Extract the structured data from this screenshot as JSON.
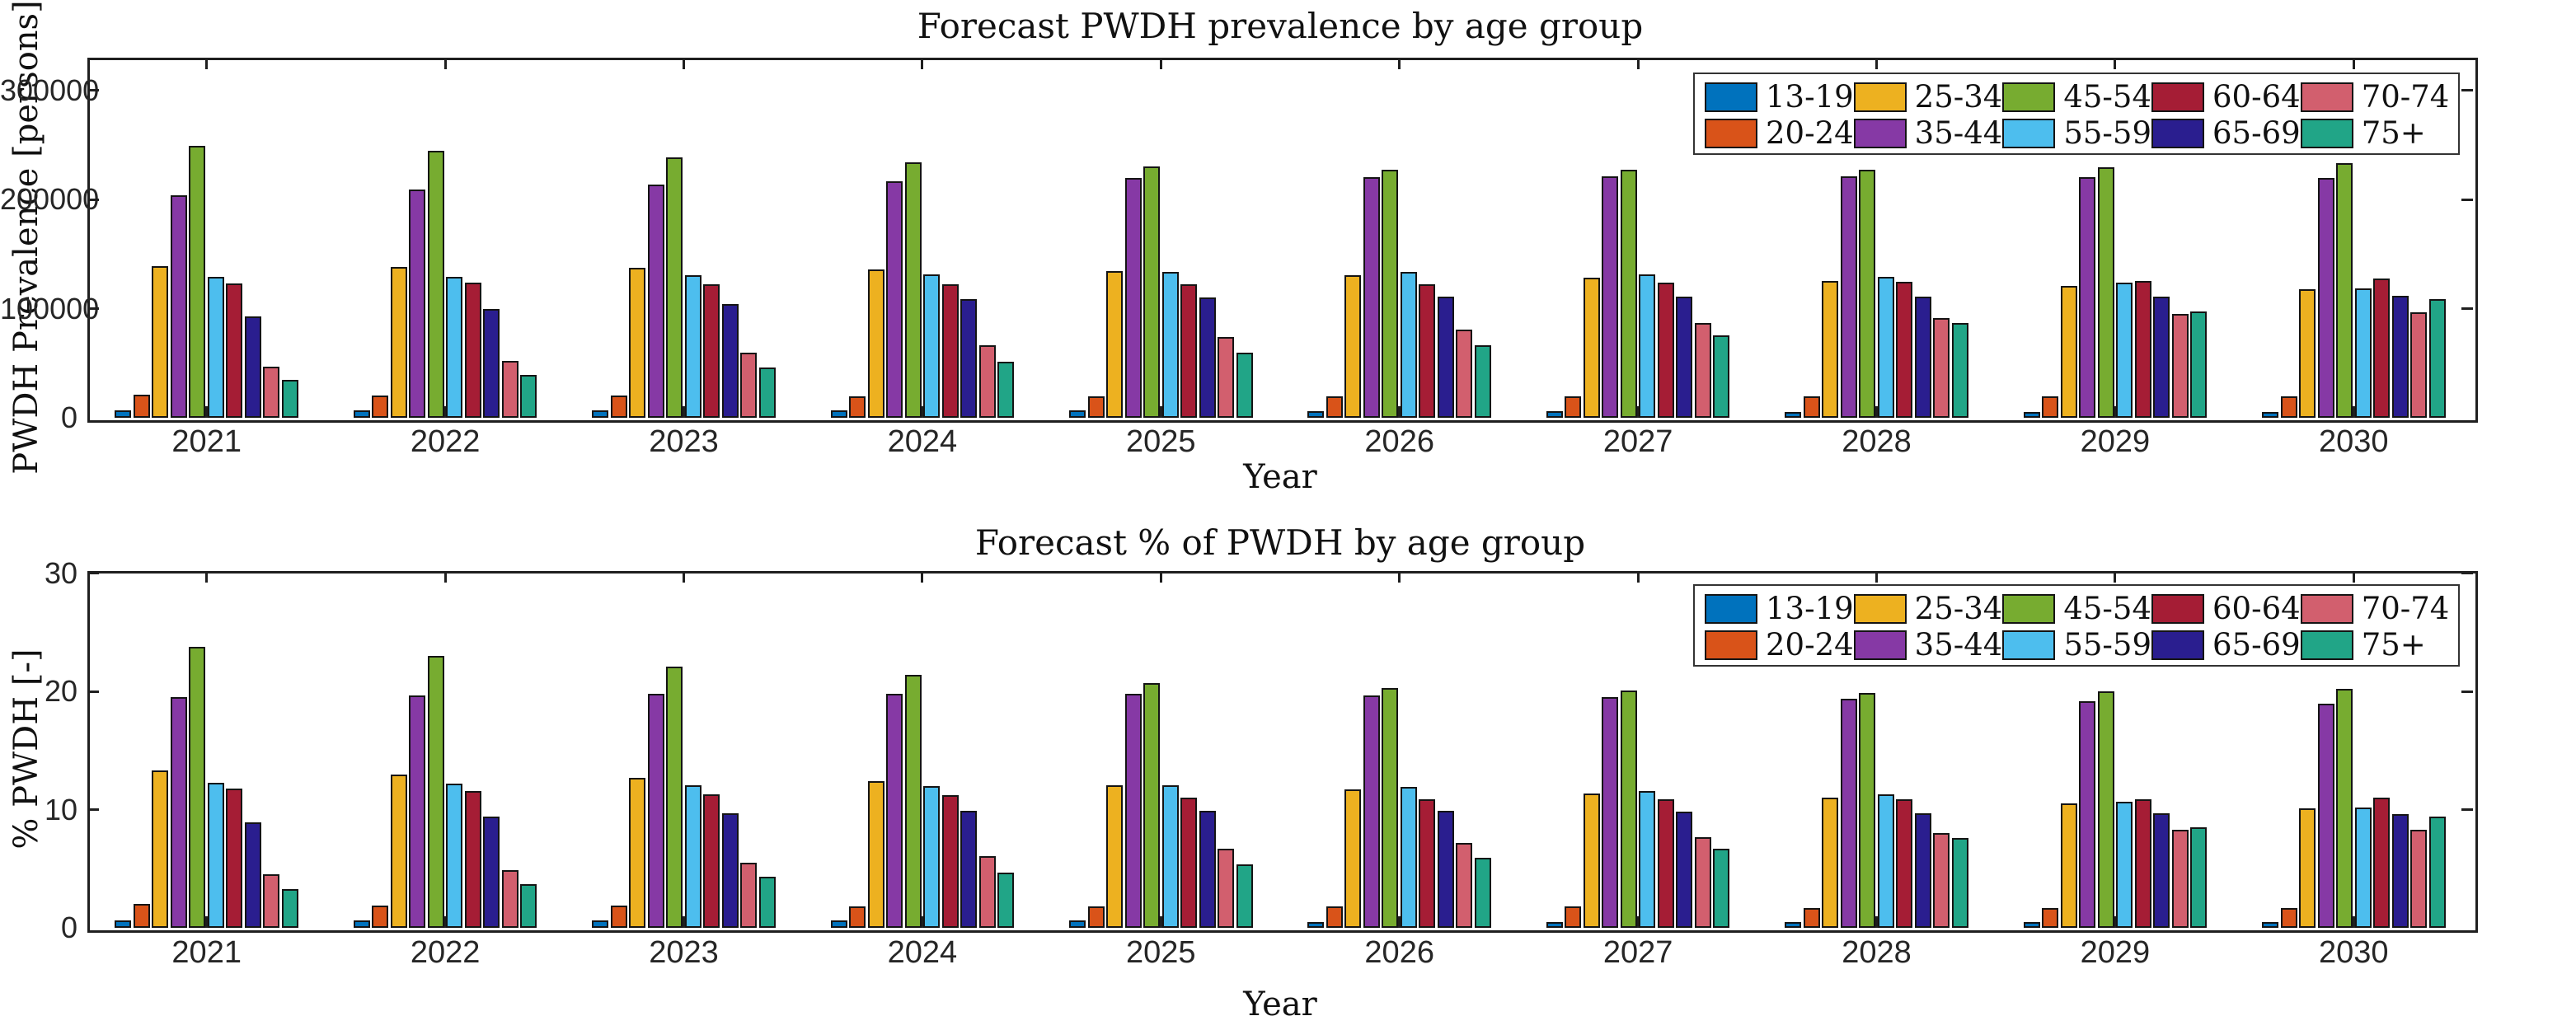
{
  "style": {
    "background": "#ffffff",
    "axis_color": "#1f1f1f",
    "bar_edge_color": "#141414",
    "text_color": "#111111",
    "tick_label_color": "#262626"
  },
  "legend": {
    "position": "top-right",
    "entries": [
      {
        "label": "13-19",
        "color": "#0072BD"
      },
      {
        "label": "20-24",
        "color": "#D95319"
      },
      {
        "label": "25-34",
        "color": "#EDB120"
      },
      {
        "label": "35-44",
        "color": "#8639A5"
      },
      {
        "label": "45-54",
        "color": "#77AC30"
      },
      {
        "label": "55-59",
        "color": "#4DBEEE"
      },
      {
        "label": "60-64",
        "color": "#A51D35"
      },
      {
        "label": "65-69",
        "color": "#2A1E8F"
      },
      {
        "label": "70-74",
        "color": "#D25F6E"
      },
      {
        "label": "75+",
        "color": "#21A587"
      }
    ]
  },
  "chart_data": [
    {
      "type": "bar",
      "title": "Forecast PWDH prevalence by age group",
      "xlabel": "Year",
      "ylabel": "PWDH Prevalence [persons]",
      "categories": [
        "2021",
        "2022",
        "2023",
        "2024",
        "2025",
        "2026",
        "2027",
        "2028",
        "2029",
        "2030"
      ],
      "ylim": [
        0,
        330000
      ],
      "yticks": [
        0,
        100000,
        200000,
        300000
      ],
      "grid": false,
      "box": true,
      "legend_position": "top-right",
      "series": [
        {
          "name": "13-19",
          "values": [
            6500,
            6500,
            6500,
            6500,
            6500,
            6000,
            6000,
            5500,
            5500,
            5500
          ]
        },
        {
          "name": "20-24",
          "values": [
            21000,
            20500,
            20500,
            20000,
            20000,
            20000,
            20000,
            19500,
            19500,
            19500
          ]
        },
        {
          "name": "25-34",
          "values": [
            139000,
            138500,
            137500,
            136000,
            134500,
            130500,
            128500,
            125000,
            121000,
            117500
          ]
        },
        {
          "name": "35-44",
          "values": [
            204000,
            209000,
            213500,
            217000,
            219500,
            220500,
            221000,
            221500,
            220500,
            220000
          ]
        },
        {
          "name": "45-54",
          "values": [
            249000,
            244500,
            238500,
            234000,
            230500,
            227500,
            227000,
            227500,
            229500,
            233500
          ]
        },
        {
          "name": "55-59",
          "values": [
            129000,
            129500,
            130500,
            131500,
            134000,
            133500,
            131500,
            129000,
            123500,
            118500
          ]
        },
        {
          "name": "60-64",
          "values": [
            123000,
            123500,
            122500,
            122500,
            122000,
            122000,
            123500,
            124500,
            125500,
            127500
          ]
        },
        {
          "name": "65-69",
          "values": [
            93000,
            100000,
            104500,
            108500,
            110500,
            111000,
            111000,
            111000,
            111000,
            111500
          ]
        },
        {
          "name": "70-74",
          "values": [
            47000,
            52000,
            59500,
            66500,
            74000,
            81000,
            87000,
            91500,
            95500,
            96500
          ]
        },
        {
          "name": "75+",
          "values": [
            34500,
            39500,
            46000,
            51500,
            59500,
            66500,
            75500,
            86500,
            97500,
            108500
          ]
        }
      ]
    },
    {
      "type": "bar",
      "title": "Forecast % of PWDH by age group",
      "xlabel": "Year",
      "ylabel": "% PWDH [-]",
      "categories": [
        "2021",
        "2022",
        "2023",
        "2024",
        "2025",
        "2026",
        "2027",
        "2028",
        "2029",
        "2030"
      ],
      "ylim": [
        0,
        30.2
      ],
      "yticks": [
        0,
        10,
        20,
        30
      ],
      "grid": false,
      "box": true,
      "legend_position": "top-right",
      "series": [
        {
          "name": "13-19",
          "values": [
            0.6,
            0.6,
            0.6,
            0.6,
            0.6,
            0.5,
            0.5,
            0.5,
            0.5,
            0.5
          ]
        },
        {
          "name": "20-24",
          "values": [
            2.0,
            1.9,
            1.9,
            1.8,
            1.8,
            1.8,
            1.8,
            1.7,
            1.7,
            1.7
          ]
        },
        {
          "name": "25-34",
          "values": [
            13.3,
            13.0,
            12.7,
            12.4,
            12.1,
            11.7,
            11.4,
            11.0,
            10.5,
            10.1
          ]
        },
        {
          "name": "35-44",
          "values": [
            19.5,
            19.7,
            19.8,
            19.8,
            19.8,
            19.7,
            19.5,
            19.4,
            19.2,
            19.0
          ]
        },
        {
          "name": "45-54",
          "values": [
            23.8,
            23.0,
            22.1,
            21.4,
            20.7,
            20.3,
            20.1,
            19.9,
            20.0,
            20.2
          ]
        },
        {
          "name": "55-59",
          "values": [
            12.3,
            12.2,
            12.1,
            12.0,
            12.1,
            11.9,
            11.6,
            11.3,
            10.7,
            10.2
          ]
        },
        {
          "name": "60-64",
          "values": [
            11.8,
            11.6,
            11.3,
            11.2,
            11.0,
            10.9,
            10.9,
            10.9,
            10.9,
            11.0
          ]
        },
        {
          "name": "65-69",
          "values": [
            8.9,
            9.4,
            9.7,
            9.9,
            9.9,
            9.9,
            9.8,
            9.7,
            9.7,
            9.6
          ]
        },
        {
          "name": "70-74",
          "values": [
            4.5,
            4.9,
            5.5,
            6.1,
            6.7,
            7.2,
            7.7,
            8.0,
            8.3,
            8.3
          ]
        },
        {
          "name": "75+",
          "values": [
            3.3,
            3.7,
            4.3,
            4.7,
            5.4,
            5.9,
            6.7,
            7.6,
            8.5,
            9.4
          ]
        }
      ]
    }
  ]
}
